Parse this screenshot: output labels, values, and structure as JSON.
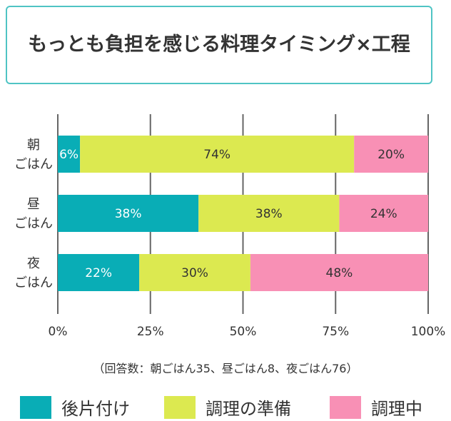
{
  "title": "もっとも負担を感じる料理タイミング×工程",
  "note": "（回答数：朝ごはん35、昼ごはん8、夜ごはん76）",
  "chart_data": {
    "type": "bar",
    "orientation": "horizontal",
    "stacked": true,
    "title": "もっとも負担を感じる料理タイミング×工程",
    "categories": [
      [
        "朝",
        "ごはん"
      ],
      [
        "昼",
        "ごはん"
      ],
      [
        "夜",
        "ごはん"
      ]
    ],
    "series": [
      {
        "name": "後片付け",
        "color": "#09adb6",
        "values": [
          6,
          38,
          22
        ]
      },
      {
        "name": "調理の準備",
        "color": "#dce950",
        "values": [
          74,
          38,
          30
        ]
      },
      {
        "name": "調理中",
        "color": "#f890b5",
        "values": [
          20,
          24,
          48
        ]
      }
    ],
    "xlim": [
      0,
      100
    ],
    "xticks": [
      "0%",
      "25%",
      "50%",
      "75%",
      "100%"
    ],
    "grid": true,
    "legend": "bottom"
  }
}
